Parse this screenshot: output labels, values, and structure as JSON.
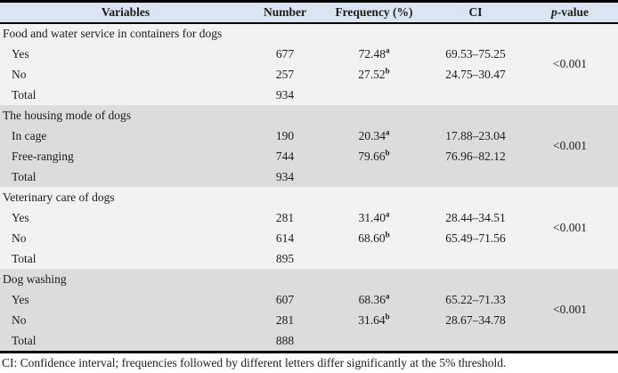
{
  "table": {
    "columns": {
      "variables": "Variables",
      "number": "Number",
      "frequency": "Frequency (%)",
      "ci": "CI",
      "p_italic": "p",
      "p_rest": "-value"
    },
    "sections": [
      {
        "label": "Food and water service in containers for dogs",
        "rows": [
          {
            "label": "Yes",
            "number": "677",
            "frequency": "72.48",
            "sup": "a",
            "ci": "69.53–75.25"
          },
          {
            "label": "No",
            "number": "257",
            "frequency": "27.52",
            "sup": "b",
            "ci": "24.75–30.47"
          }
        ],
        "p_value": "<0.001",
        "total": {
          "label": "Total",
          "number": "934"
        }
      },
      {
        "label": "The housing mode of dogs",
        "rows": [
          {
            "label": "In cage",
            "number": "190",
            "frequency": "20.34",
            "sup": "a",
            "ci": "17.88–23.04"
          },
          {
            "label": "Free-ranging",
            "number": "744",
            "frequency": "79.66",
            "sup": "b",
            "ci": "76.96–82.12"
          }
        ],
        "p_value": "<0.001",
        "total": {
          "label": "Total",
          "number": "934"
        }
      },
      {
        "label": "Veterinary care of dogs",
        "rows": [
          {
            "label": "Yes",
            "number": "281",
            "frequency": "31.40",
            "sup": "a",
            "ci": "28.44–34.51"
          },
          {
            "label": "No",
            "number": "614",
            "frequency": "68.60",
            "sup": "b",
            "ci": "65.49–71.56"
          }
        ],
        "p_value": "<0.001",
        "total": {
          "label": "Total",
          "number": "895"
        }
      },
      {
        "label": "Dog washing",
        "rows": [
          {
            "label": "Yes",
            "number": "607",
            "frequency": "68.36",
            "sup": "a",
            "ci": "65.22–71.33"
          },
          {
            "label": "No",
            "number": "281",
            "frequency": "31.64",
            "sup": "b",
            "ci": "28.67–34.78"
          }
        ],
        "p_value": "<0.001",
        "total": {
          "label": "Total",
          "number": "888"
        }
      }
    ],
    "footnote": "CI: Confidence interval; frequencies followed by different letters differ significantly at the 5% threshold."
  },
  "colors": {
    "header_bg": "#dbe5f1",
    "section_gray": "#dcdcde",
    "section_light": "#f2f2f3",
    "rule": "#000000",
    "text": "#1c1c1c"
  }
}
